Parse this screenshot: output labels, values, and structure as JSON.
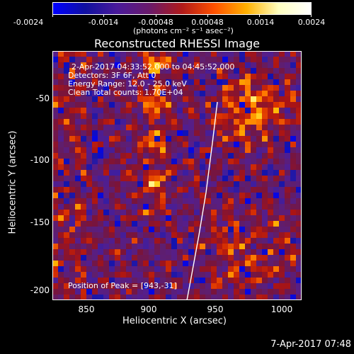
{
  "colorbar": {
    "tick_labels": [
      "-0.0024",
      "-0.0014",
      "-0.00048",
      "0.00048",
      "0.0014",
      "0.0024"
    ],
    "units": "(photons cm⁻² s⁻¹ asec⁻²)",
    "gradient_colors": [
      "#0000ff",
      "#1010a0",
      "#4a1a9a",
      "#6a1a6a",
      "#b01a1a",
      "#ff5000",
      "#ffb000",
      "#ffffc0",
      "#ffffff"
    ]
  },
  "title": "Reconstructed RHESSI Image",
  "annotations": {
    "time_range": "2-Apr-2017 04:33:52.000 to 04:45:52.000",
    "detectors": "Detectors: 3F 6F, Att 0",
    "energy_range": "Energy Range: 12.0 - 25.0 keV",
    "clean": "Clean     Total counts: 1.70E+04",
    "peak": "Position of Peak = [943,-31]"
  },
  "axes": {
    "x_label": "Heliocentric X (arcsec)",
    "y_label": "Heliocentric Y (arcsec)",
    "x_ticks": [
      "850",
      "900",
      "950",
      "1000"
    ],
    "y_ticks": [
      "-50",
      "-100",
      "-150",
      "-200"
    ]
  },
  "timestamp": "7-Apr-2017 07:48"
}
